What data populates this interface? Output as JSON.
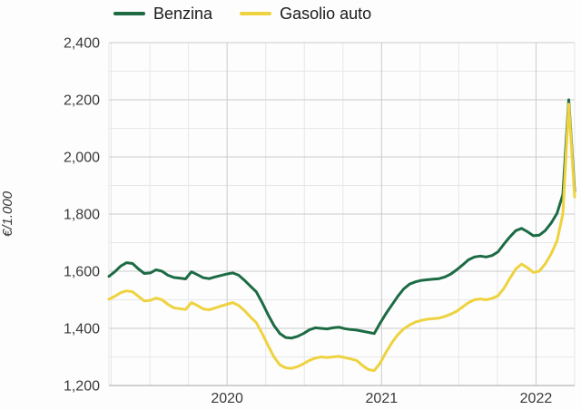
{
  "axis": {
    "y_title": "€/1.000"
  },
  "chart_data": {
    "type": "line",
    "title": "",
    "xlabel": "",
    "ylabel": "€/1.000",
    "x_domain": [
      2019.235,
      2022.25
    ],
    "x_minor_step_years": 0.25,
    "ylim": [
      1200,
      2400
    ],
    "y_minor_step": 100,
    "grid": "on",
    "legend_position": "top",
    "x_ticks": [
      {
        "v": 2020,
        "label": "2020"
      },
      {
        "v": 2021,
        "label": "2021"
      },
      {
        "v": 2022,
        "label": "2022"
      }
    ],
    "y_ticks": [
      {
        "v": 1200,
        "label": "1,200"
      },
      {
        "v": 1400,
        "label": "1,400"
      },
      {
        "v": 1600,
        "label": "1,600"
      },
      {
        "v": 1800,
        "label": "1,800"
      },
      {
        "v": 2000,
        "label": "2,000"
      },
      {
        "v": 2200,
        "label": "2,200"
      },
      {
        "v": 2400,
        "label": "2,400"
      }
    ],
    "series": [
      {
        "name": "Benzina",
        "color": "#1c6b44",
        "values": [
          1582,
          1598,
          1618,
          1630,
          1627,
          1608,
          1592,
          1594,
          1605,
          1600,
          1586,
          1578,
          1576,
          1573,
          1598,
          1588,
          1577,
          1574,
          1580,
          1585,
          1590,
          1594,
          1586,
          1568,
          1548,
          1528,
          1490,
          1448,
          1410,
          1382,
          1368,
          1366,
          1372,
          1382,
          1395,
          1402,
          1400,
          1398,
          1402,
          1404,
          1399,
          1396,
          1394,
          1390,
          1386,
          1382,
          1418,
          1452,
          1482,
          1512,
          1538,
          1555,
          1563,
          1568,
          1570,
          1572,
          1574,
          1580,
          1590,
          1605,
          1622,
          1640,
          1650,
          1653,
          1650,
          1655,
          1668,
          1695,
          1720,
          1742,
          1750,
          1738,
          1724,
          1726,
          1742,
          1768,
          1802,
          1868,
          2200,
          1880
        ]
      },
      {
        "name": "Gasolio auto",
        "color": "#eed23f",
        "values": [
          1502,
          1512,
          1525,
          1531,
          1528,
          1512,
          1496,
          1498,
          1506,
          1500,
          1484,
          1472,
          1469,
          1466,
          1490,
          1480,
          1468,
          1465,
          1471,
          1478,
          1484,
          1490,
          1480,
          1462,
          1440,
          1420,
          1382,
          1340,
          1300,
          1272,
          1262,
          1260,
          1266,
          1276,
          1288,
          1296,
          1300,
          1298,
          1300,
          1302,
          1298,
          1293,
          1288,
          1270,
          1256,
          1252,
          1278,
          1316,
          1350,
          1378,
          1398,
          1412,
          1422,
          1428,
          1432,
          1434,
          1436,
          1442,
          1450,
          1460,
          1475,
          1490,
          1500,
          1503,
          1500,
          1505,
          1514,
          1540,
          1575,
          1608,
          1625,
          1612,
          1596,
          1600,
          1625,
          1660,
          1705,
          1800,
          2185,
          1860
        ]
      }
    ],
    "colors": {
      "grid_minor": "#e7e7e7",
      "grid_major": "#cbcbcb",
      "axis_bottom": "#a3a3a3",
      "tick_text": "#3a3a3a"
    }
  }
}
